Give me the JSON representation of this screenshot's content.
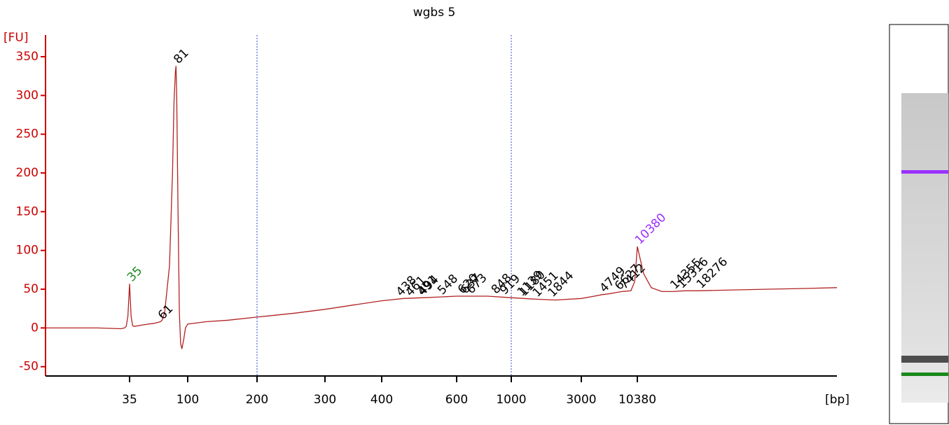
{
  "chart_data": {
    "type": "line",
    "title": "wgbs 5",
    "y_label": "[FU]",
    "x_label": "[bp]",
    "color": "#b22222",
    "axis_color": "#cc0000",
    "xlim": [
      8,
      65000
    ],
    "ylim": [
      -62,
      378
    ],
    "xticks": [
      35,
      100,
      200,
      300,
      400,
      600,
      1000,
      3000,
      10380
    ],
    "yticks": [
      -50,
      0,
      50,
      100,
      150,
      200,
      250,
      300,
      350
    ],
    "vlines": [
      200,
      1000
    ],
    "x": [
      8,
      20,
      30,
      32,
      33,
      34,
      35,
      36,
      37,
      38,
      45,
      55,
      61,
      63,
      66,
      72,
      76,
      78,
      80,
      81,
      82,
      84,
      86,
      88,
      90,
      93,
      96,
      100,
      120,
      150,
      200,
      250,
      300,
      350,
      400,
      450,
      500,
      550,
      600,
      700,
      800,
      1000,
      1500,
      2000,
      3000,
      4000,
      4749,
      5500,
      6627,
      7412,
      9000,
      9800,
      10380,
      11000,
      11800,
      13000,
      14355,
      16000,
      18276,
      25000,
      35000,
      50000,
      65000
    ],
    "values": [
      0,
      0,
      -1,
      0,
      2,
      15,
      57,
      15,
      3,
      2,
      4,
      6,
      8,
      10,
      20,
      80,
      200,
      290,
      330,
      338,
      300,
      150,
      20,
      -20,
      -27,
      -15,
      0,
      5,
      8,
      10,
      14,
      19,
      24,
      30,
      35,
      38,
      39,
      40,
      41,
      41,
      41,
      39,
      37,
      36,
      38,
      41,
      43,
      44,
      46,
      47,
      48,
      60,
      105,
      70,
      52,
      47,
      47,
      48,
      48,
      49,
      50,
      51,
      52
    ],
    "peaks": {
      "x": [
        35,
        61,
        81,
        438,
        461,
        491,
        494,
        548,
        620,
        637,
        673,
        848,
        919,
        1139,
        1180,
        1451,
        1844,
        4749,
        6627,
        7412,
        10380,
        14355,
        15316,
        18276
      ],
      "y": [
        57,
        8,
        338,
        38,
        38,
        39,
        39,
        40,
        41,
        41,
        41,
        41,
        40,
        38,
        38,
        37,
        37,
        43,
        46,
        47,
        105,
        47,
        48,
        48
      ],
      "colors": [
        "#1a8a1a",
        "#000000",
        "#000000",
        "#000000",
        "#000000",
        "#000000",
        "#000000",
        "#000000",
        "#000000",
        "#000000",
        "#000000",
        "#000000",
        "#000000",
        "#000000",
        "#000000",
        "#000000",
        "#000000",
        "#000000",
        "#000000",
        "#000000",
        "#9b30ff",
        "#000000",
        "#000000",
        "#000000"
      ]
    }
  }
}
